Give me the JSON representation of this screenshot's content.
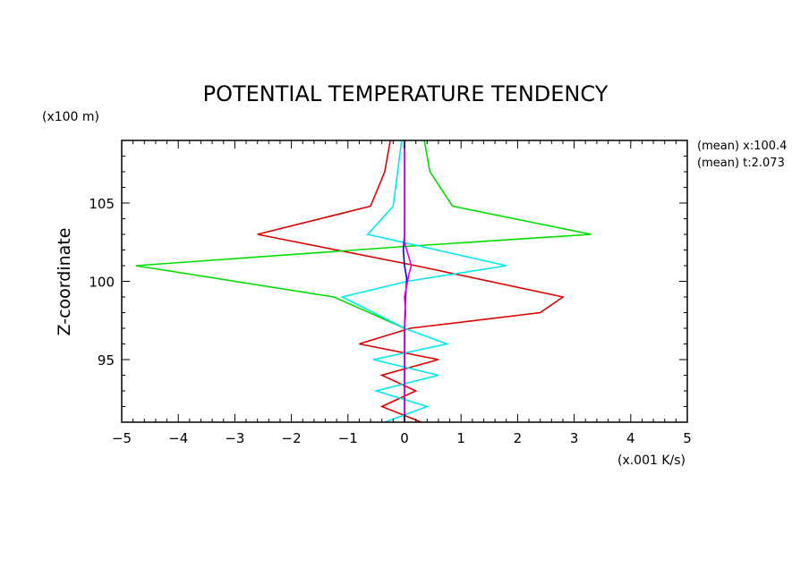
{
  "chart_data": {
    "type": "line",
    "title": "POTENTIAL TEMPERATURE TENDENCY",
    "ylabel": "Z-coordinate",
    "yunit": "(x100 m)",
    "xunit": "(x.001 K/s)",
    "xlim": [
      -5,
      5
    ],
    "ylim": [
      91,
      109
    ],
    "xticks": [
      -5,
      -4,
      -3,
      -2,
      -1,
      0,
      1,
      2,
      3,
      4,
      5
    ],
    "xtick_labels": [
      "−5",
      "−4",
      "−3",
      "−2",
      "−1",
      "0",
      "1",
      "2",
      "3",
      "4",
      "5"
    ],
    "yticks": [
      95,
      100,
      105
    ],
    "ytick_labels": [
      "95",
      "100",
      "105"
    ],
    "grid": false,
    "annotations": [
      "(mean) x:100.4",
      "(mean) t:2.073"
    ],
    "series": [
      {
        "color": "#e00000",
        "x": [
          0.3,
          -0.4,
          0.2,
          -0.4,
          0.6,
          -0.8,
          0.1,
          2.4,
          2.8,
          0.2,
          -2.6,
          -0.6,
          -0.35,
          -0.25
        ],
        "y": [
          91,
          92,
          93,
          94,
          95,
          96,
          97,
          98,
          99,
          101,
          103,
          104.8,
          107,
          109
        ]
      },
      {
        "color": "#00e000",
        "x": [
          0.0,
          0.0,
          0.0,
          0.0,
          0.0,
          0.0,
          -1.25,
          -4.75,
          -0.1,
          3.3,
          0.85,
          0.45,
          0.35
        ],
        "y": [
          91,
          92,
          93,
          94,
          95,
          97,
          99,
          101,
          102.2,
          103,
          104.8,
          107,
          109
        ]
      },
      {
        "color": "#00e8f0",
        "x": [
          -0.35,
          0.4,
          -0.5,
          0.6,
          -0.55,
          0.75,
          0.0,
          -1.1,
          0.05,
          1.8,
          -0.65,
          -0.2,
          -0.05
        ],
        "y": [
          91,
          92,
          93,
          94,
          95,
          96,
          97,
          99,
          100,
          101,
          103,
          104.8,
          109
        ]
      },
      {
        "color": "#0000e0",
        "x": [
          0.0,
          0.0,
          0.02,
          0.04,
          0.0,
          -0.02,
          0.0,
          0.0
        ],
        "y": [
          91,
          97,
          99,
          100.2,
          101,
          102,
          103,
          109
        ]
      },
      {
        "color": "#e000e0",
        "x": [
          0.0,
          0.0,
          0.02,
          0.0,
          0.08,
          0.12,
          0.0,
          0.0,
          0.0
        ],
        "y": [
          91,
          97,
          98,
          99,
          100.5,
          101,
          102.5,
          103,
          109
        ]
      }
    ]
  }
}
